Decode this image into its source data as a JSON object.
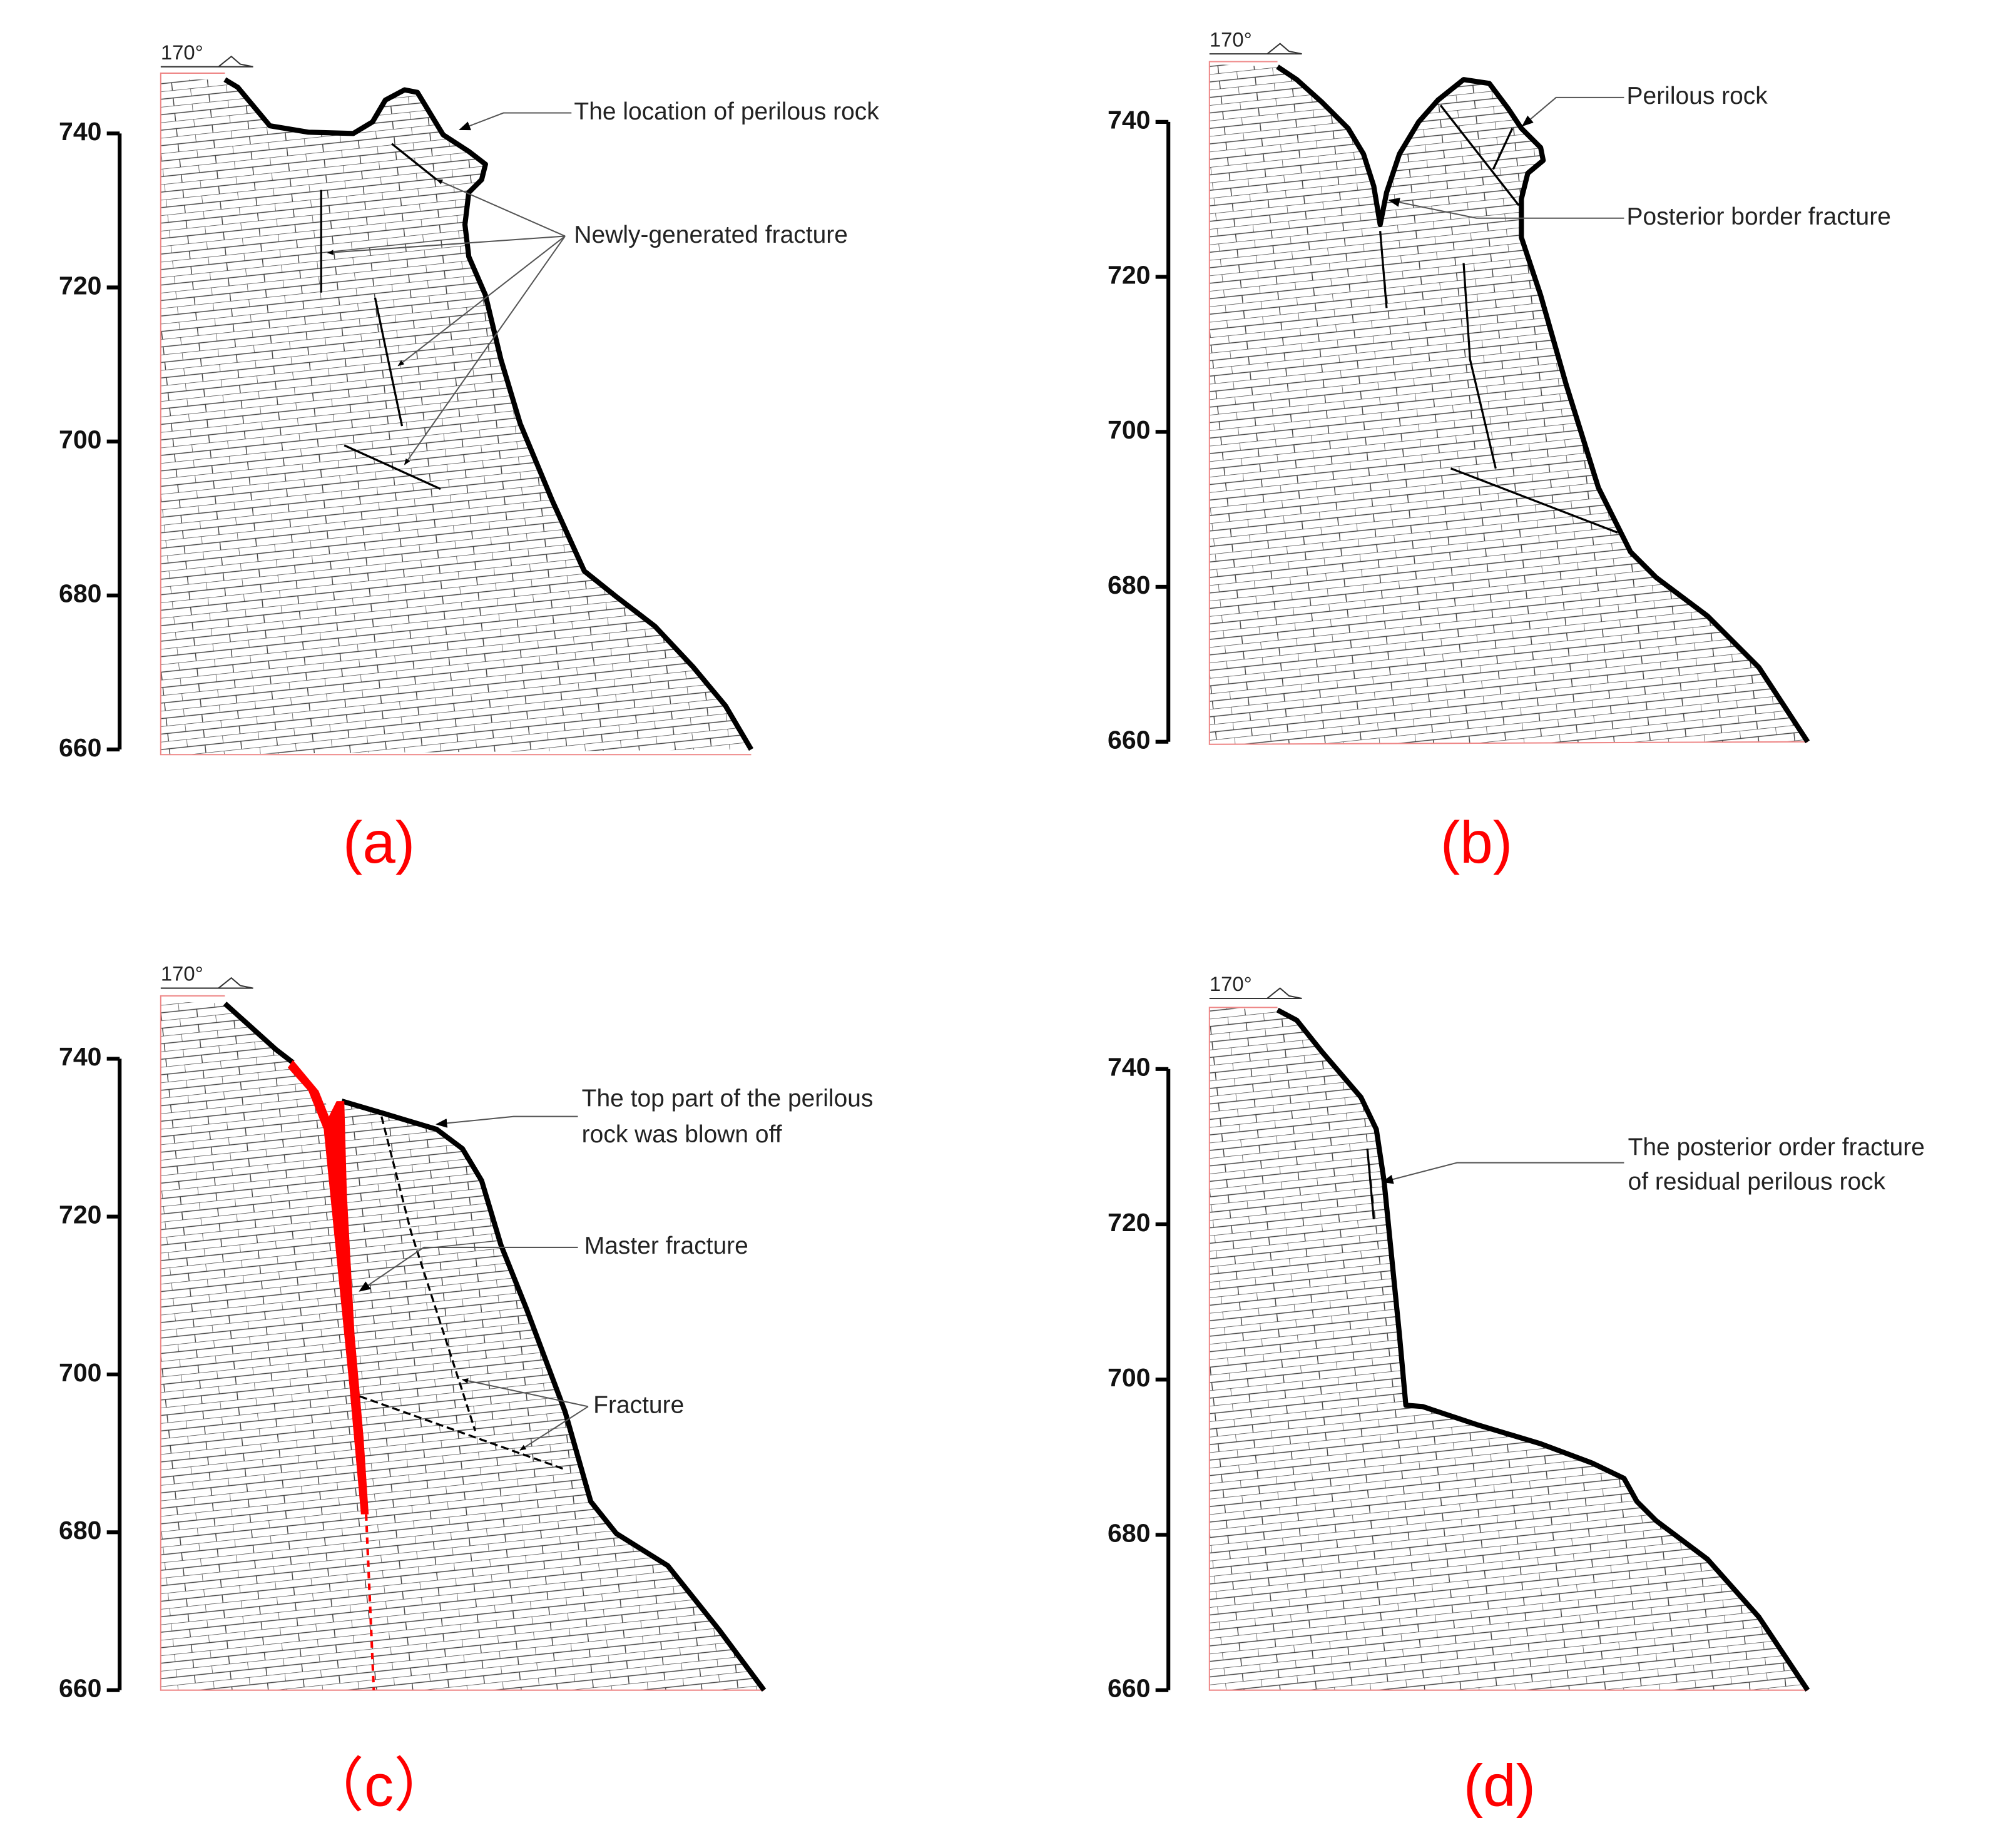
{
  "panels": [
    {
      "label": "(a)",
      "orientation": "170°",
      "elevation_ticks": [
        740,
        720,
        700,
        680,
        660
      ],
      "annotations": [
        "The location of perilous rock",
        "Newly-generated fracture"
      ]
    },
    {
      "label": "(b)",
      "orientation": "170°",
      "elevation_ticks": [
        740,
        720,
        700,
        680,
        660
      ],
      "annotations": [
        "Perilous rock",
        "Posterior border fracture"
      ]
    },
    {
      "label": "（c）",
      "orientation": "170°",
      "elevation_ticks": [
        740,
        720,
        700,
        680,
        660
      ],
      "annotations": [
        [
          "The top part of the perilous",
          "rock was blown off"
        ],
        "Master fracture",
        "Fracture"
      ]
    },
    {
      "label": "(d)",
      "orientation": "170°",
      "elevation_ticks": [
        740,
        720,
        700,
        680,
        660
      ],
      "annotations": [
        [
          "The posterior order fracture",
          "of residual perilous rock"
        ]
      ]
    }
  ]
}
